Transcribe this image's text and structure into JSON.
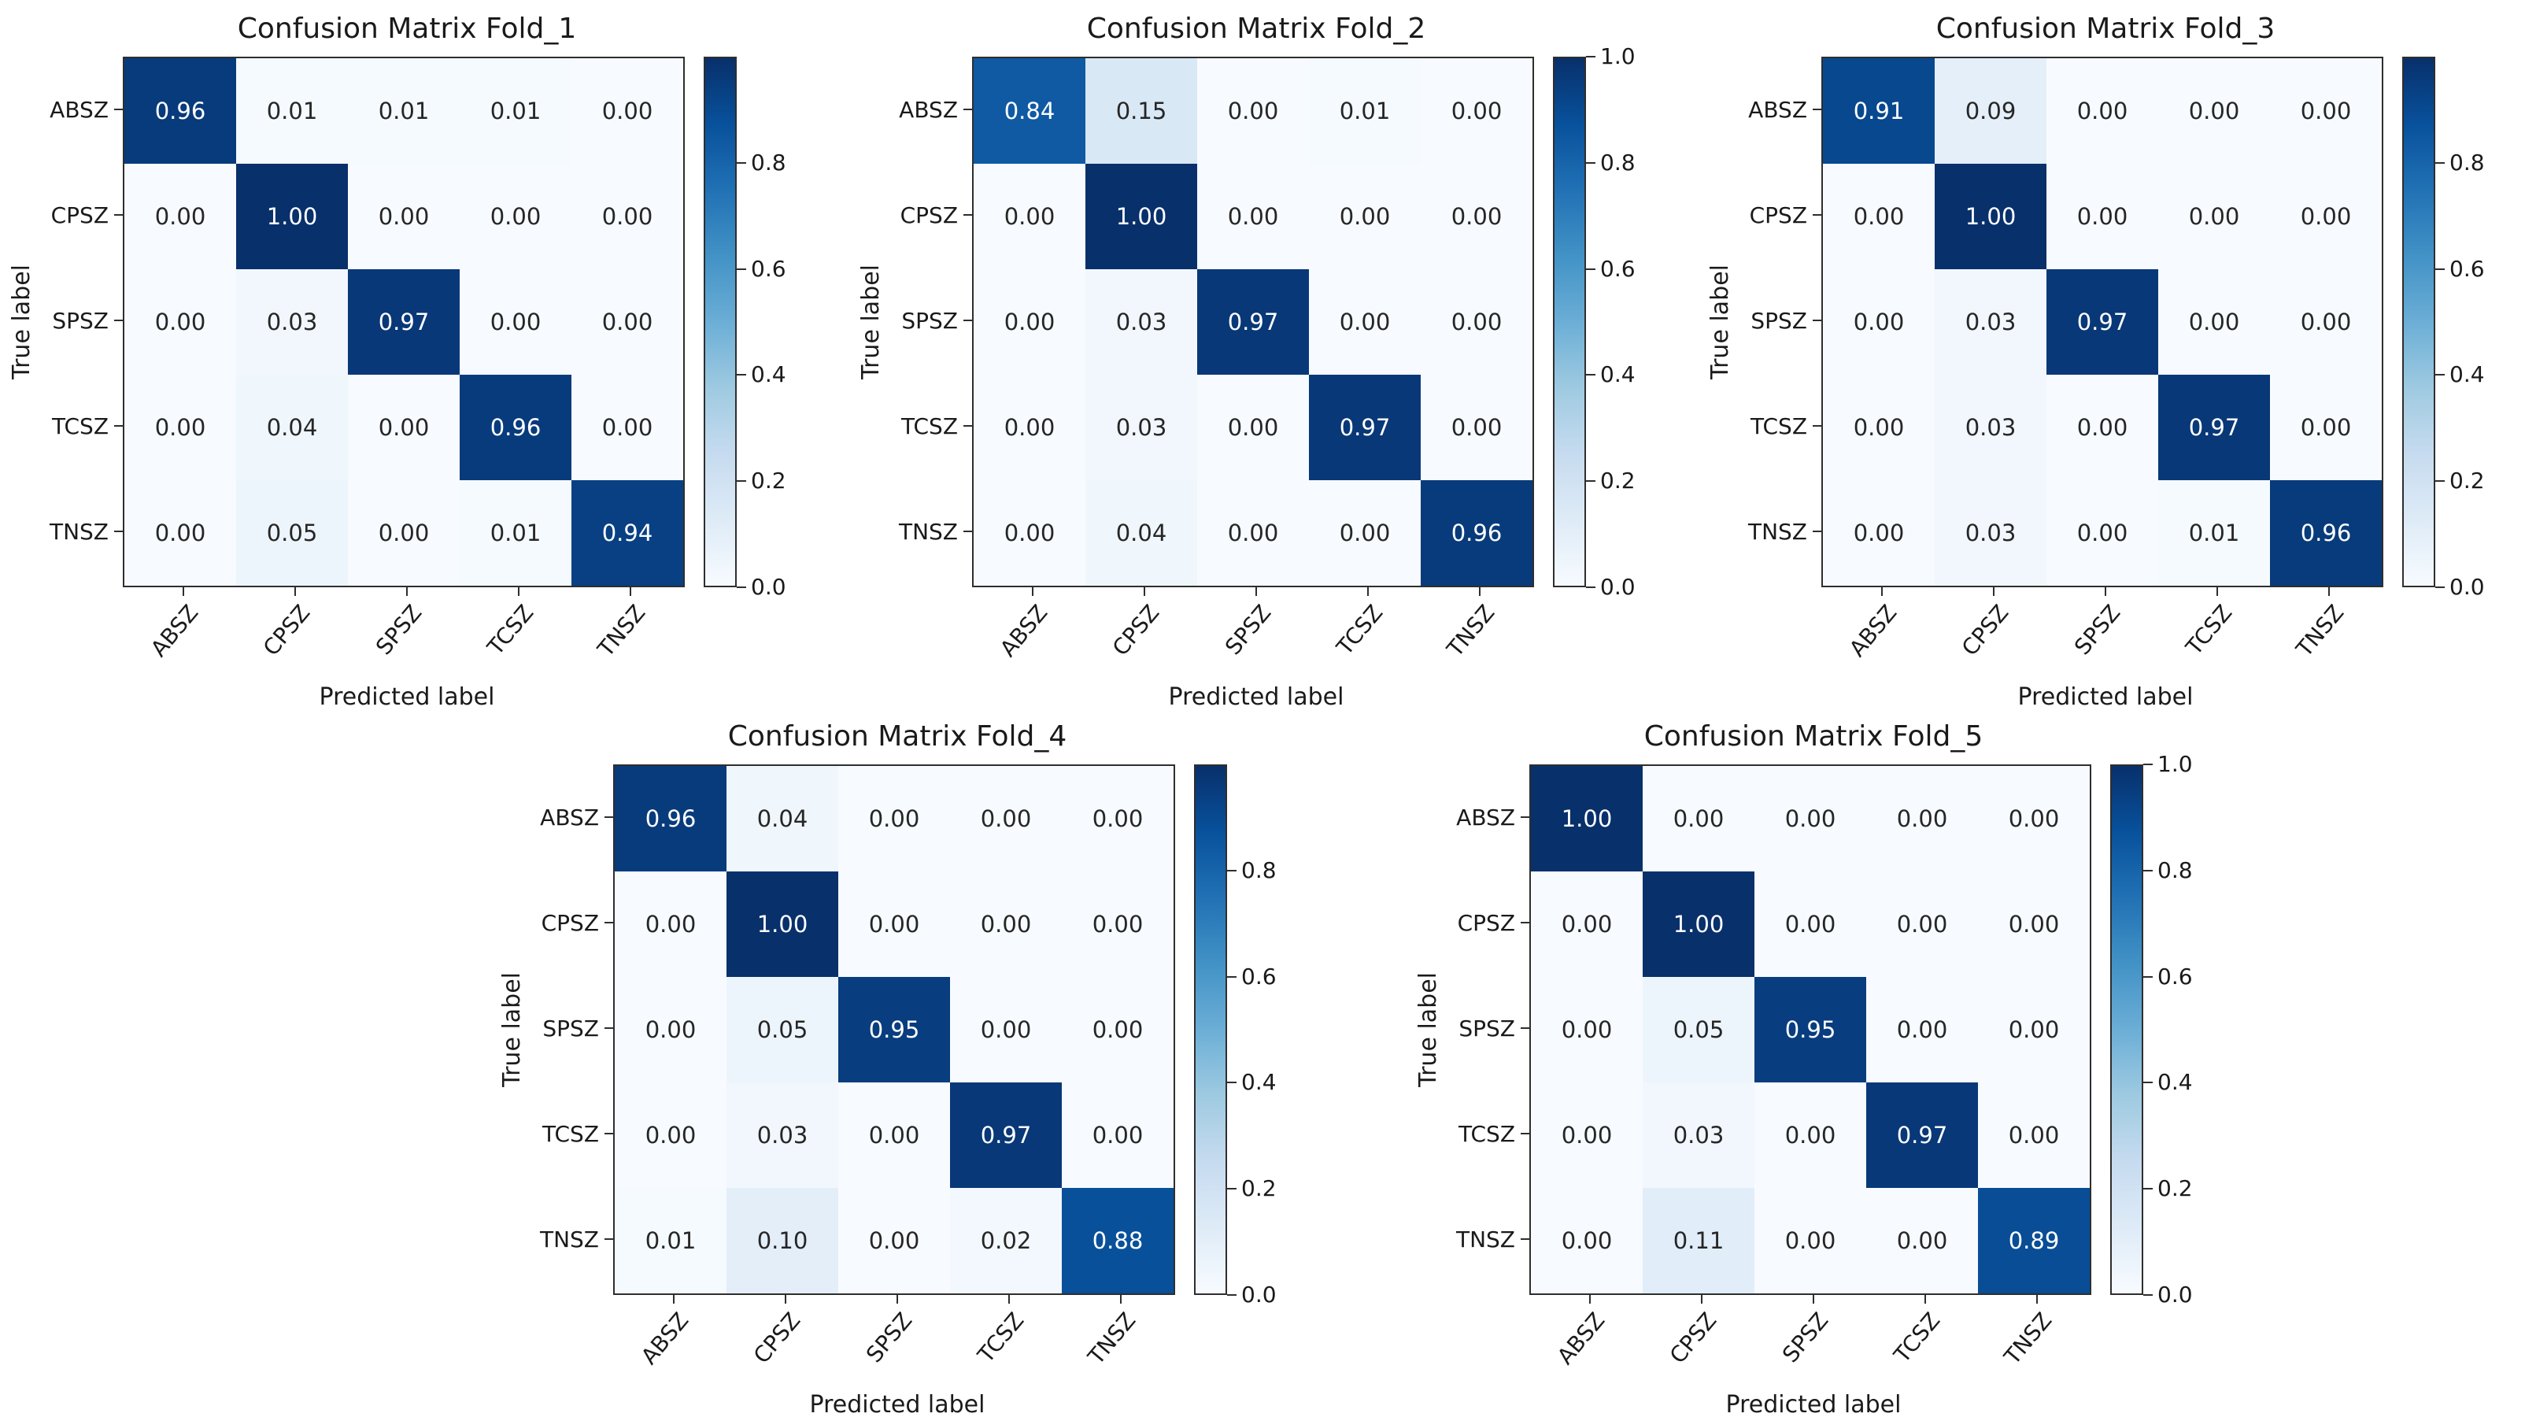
{
  "figure": {
    "background": "#ffffff",
    "text_color": "#1a1a1a",
    "spine_color": "#2e2e2e"
  },
  "colormap": {
    "name": "Blues",
    "stops": [
      [
        0.0,
        "#f7fbff"
      ],
      [
        0.125,
        "#deebf7"
      ],
      [
        0.25,
        "#c6dbef"
      ],
      [
        0.375,
        "#9ecae1"
      ],
      [
        0.5,
        "#6baed6"
      ],
      [
        0.625,
        "#4292c6"
      ],
      [
        0.75,
        "#2171b5"
      ],
      [
        0.875,
        "#08519c"
      ],
      [
        1.0,
        "#08306b"
      ]
    ],
    "cell_text_light": "#ffffff",
    "cell_text_dark": "#262626",
    "text_threshold": 0.5
  },
  "chart_data": [
    {
      "type": "heatmap",
      "title": "Confusion Matrix Fold_1",
      "xlabel": "Predicted label",
      "ylabel": "True label",
      "x_categories": [
        "ABSZ",
        "CPSZ",
        "SPSZ",
        "TCSZ",
        "TNSZ"
      ],
      "y_categories": [
        "ABSZ",
        "CPSZ",
        "SPSZ",
        "TCSZ",
        "TNSZ"
      ],
      "values": [
        [
          0.96,
          0.01,
          0.01,
          0.01,
          0.0
        ],
        [
          0.0,
          1.0,
          0.0,
          0.0,
          0.0
        ],
        [
          0.0,
          0.03,
          0.97,
          0.0,
          0.0
        ],
        [
          0.0,
          0.04,
          0.0,
          0.96,
          0.0
        ],
        [
          0.0,
          0.05,
          0.0,
          0.01,
          0.94
        ]
      ],
      "vmin": 0.0,
      "vmax": 1.0,
      "colorbar_ticks": [
        0.8,
        0.6,
        0.4,
        0.2,
        0.0
      ],
      "legend_position": "right",
      "grid": false
    },
    {
      "type": "heatmap",
      "title": "Confusion Matrix Fold_2",
      "xlabel": "Predicted label",
      "ylabel": "True label",
      "x_categories": [
        "ABSZ",
        "CPSZ",
        "SPSZ",
        "TCSZ",
        "TNSZ"
      ],
      "y_categories": [
        "ABSZ",
        "CPSZ",
        "SPSZ",
        "TCSZ",
        "TNSZ"
      ],
      "values": [
        [
          0.84,
          0.15,
          0.0,
          0.01,
          0.0
        ],
        [
          0.0,
          1.0,
          0.0,
          0.0,
          0.0
        ],
        [
          0.0,
          0.03,
          0.97,
          0.0,
          0.0
        ],
        [
          0.0,
          0.03,
          0.0,
          0.97,
          0.0
        ],
        [
          0.0,
          0.04,
          0.0,
          0.0,
          0.96
        ]
      ],
      "vmin": 0.0,
      "vmax": 1.0,
      "colorbar_ticks": [
        1.0,
        0.8,
        0.6,
        0.4,
        0.2,
        0.0
      ],
      "legend_position": "right",
      "grid": false
    },
    {
      "type": "heatmap",
      "title": "Confusion Matrix Fold_3",
      "xlabel": "Predicted label",
      "ylabel": "True label",
      "x_categories": [
        "ABSZ",
        "CPSZ",
        "SPSZ",
        "TCSZ",
        "TNSZ"
      ],
      "y_categories": [
        "ABSZ",
        "CPSZ",
        "SPSZ",
        "TCSZ",
        "TNSZ"
      ],
      "values": [
        [
          0.91,
          0.09,
          0.0,
          0.0,
          0.0
        ],
        [
          0.0,
          1.0,
          0.0,
          0.0,
          0.0
        ],
        [
          0.0,
          0.03,
          0.97,
          0.0,
          0.0
        ],
        [
          0.0,
          0.03,
          0.0,
          0.97,
          0.0
        ],
        [
          0.0,
          0.03,
          0.0,
          0.01,
          0.96
        ]
      ],
      "vmin": 0.0,
      "vmax": 1.0,
      "colorbar_ticks": [
        0.8,
        0.6,
        0.4,
        0.2,
        0.0
      ],
      "legend_position": "right",
      "grid": false
    },
    {
      "type": "heatmap",
      "title": "Confusion Matrix Fold_4",
      "xlabel": "Predicted label",
      "ylabel": "True label",
      "x_categories": [
        "ABSZ",
        "CPSZ",
        "SPSZ",
        "TCSZ",
        "TNSZ"
      ],
      "y_categories": [
        "ABSZ",
        "CPSZ",
        "SPSZ",
        "TCSZ",
        "TNSZ"
      ],
      "values": [
        [
          0.96,
          0.04,
          0.0,
          0.0,
          0.0
        ],
        [
          0.0,
          1.0,
          0.0,
          0.0,
          0.0
        ],
        [
          0.0,
          0.05,
          0.95,
          0.0,
          0.0
        ],
        [
          0.0,
          0.03,
          0.0,
          0.97,
          0.0
        ],
        [
          0.01,
          0.1,
          0.0,
          0.02,
          0.88
        ]
      ],
      "vmin": 0.0,
      "vmax": 1.0,
      "colorbar_ticks": [
        0.8,
        0.6,
        0.4,
        0.2,
        0.0
      ],
      "legend_position": "right",
      "grid": false
    },
    {
      "type": "heatmap",
      "title": "Confusion Matrix Fold_5",
      "xlabel": "Predicted label",
      "ylabel": "True label",
      "x_categories": [
        "ABSZ",
        "CPSZ",
        "SPSZ",
        "TCSZ",
        "TNSZ"
      ],
      "y_categories": [
        "ABSZ",
        "CPSZ",
        "SPSZ",
        "TCSZ",
        "TNSZ"
      ],
      "values": [
        [
          1.0,
          0.0,
          0.0,
          0.0,
          0.0
        ],
        [
          0.0,
          1.0,
          0.0,
          0.0,
          0.0
        ],
        [
          0.0,
          0.05,
          0.95,
          0.0,
          0.0
        ],
        [
          0.0,
          0.03,
          0.0,
          0.97,
          0.0
        ],
        [
          0.0,
          0.11,
          0.0,
          0.0,
          0.89
        ]
      ],
      "vmin": 0.0,
      "vmax": 1.0,
      "colorbar_ticks": [
        1.0,
        0.8,
        0.6,
        0.4,
        0.2,
        0.0
      ],
      "legend_position": "right",
      "grid": false
    }
  ]
}
